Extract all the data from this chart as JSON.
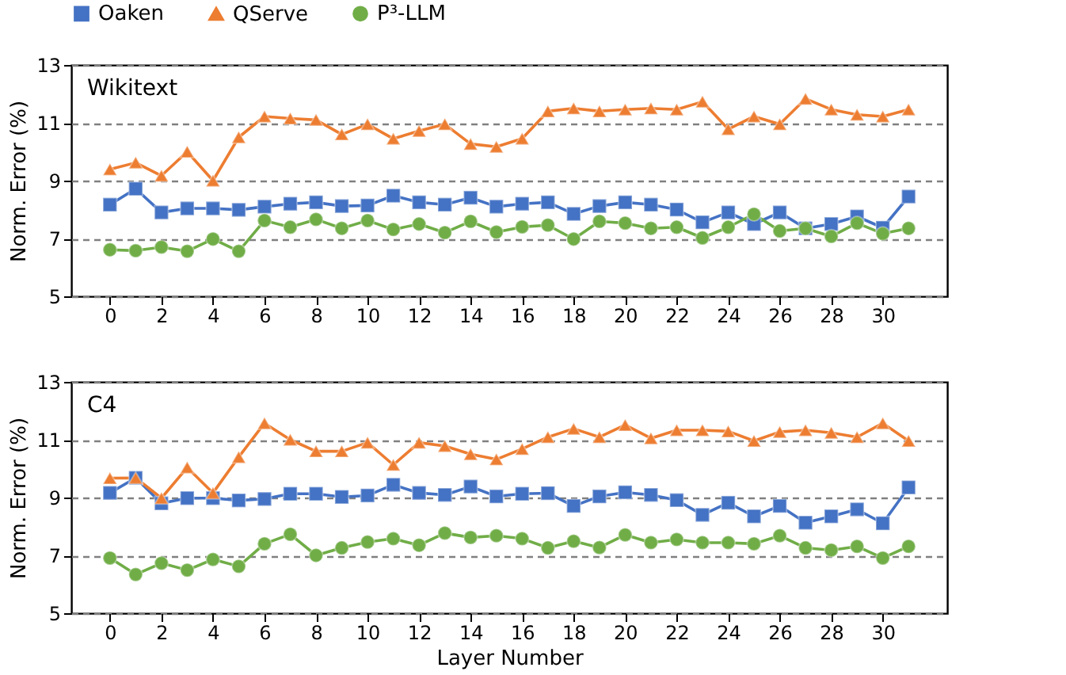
{
  "chart_data": [
    {
      "type": "line",
      "title": "Wikitext",
      "ylabel": "Norm. Error (%)",
      "legend": "top",
      "grid": "y",
      "line_style": "solid",
      "x": [
        0,
        1,
        2,
        3,
        4,
        5,
        6,
        7,
        8,
        9,
        10,
        11,
        12,
        13,
        14,
        15,
        16,
        17,
        18,
        19,
        20,
        21,
        22,
        23,
        24,
        25,
        26,
        27,
        28,
        29,
        30,
        31
      ],
      "xlim": [
        -1.5,
        32.5
      ],
      "xticks": [
        0,
        2,
        4,
        6,
        8,
        10,
        12,
        14,
        16,
        18,
        20,
        22,
        24,
        26,
        28,
        30
      ],
      "ylim": [
        5,
        13
      ],
      "yticks": [
        5,
        7,
        9,
        11,
        13
      ],
      "series": [
        {
          "name": "Oaken",
          "color": "#4472c4",
          "marker": "square",
          "values": [
            8.17,
            8.72,
            7.9,
            8.04,
            8.04,
            7.99,
            8.1,
            8.2,
            8.25,
            8.12,
            8.14,
            8.48,
            8.25,
            8.17,
            8.41,
            8.1,
            8.2,
            8.25,
            7.85,
            8.12,
            8.25,
            8.17,
            8.0,
            7.56,
            7.9,
            7.5,
            7.9,
            7.35,
            7.5,
            7.76,
            7.37,
            8.45
          ]
        },
        {
          "name": "QServe",
          "color": "#ed7d31",
          "marker": "triangle",
          "values": [
            9.39,
            9.62,
            9.17,
            10.0,
            9.0,
            10.5,
            11.22,
            11.15,
            11.1,
            10.6,
            10.95,
            10.45,
            10.72,
            10.95,
            10.27,
            10.17,
            10.45,
            11.4,
            11.5,
            11.4,
            11.46,
            11.5,
            11.46,
            11.73,
            10.78,
            11.22,
            10.95,
            11.83,
            11.46,
            11.28,
            11.22,
            11.46
          ]
        },
        {
          "name": "P³-LLM",
          "color": "#70ad47",
          "marker": "circle",
          "values": [
            6.61,
            6.58,
            6.7,
            6.56,
            6.98,
            6.56,
            7.62,
            7.39,
            7.66,
            7.35,
            7.62,
            7.31,
            7.5,
            7.2,
            7.59,
            7.22,
            7.4,
            7.46,
            6.98,
            7.59,
            7.53,
            7.35,
            7.39,
            7.02,
            7.39,
            7.84,
            7.26,
            7.35,
            7.07,
            7.53,
            7.17,
            7.35
          ]
        }
      ]
    },
    {
      "type": "line",
      "title": "C4",
      "xlabel": "Layer Number",
      "ylabel": "Norm. Error (%)",
      "grid": "y",
      "line_style": "solid",
      "x": [
        0,
        1,
        2,
        3,
        4,
        5,
        6,
        7,
        8,
        9,
        10,
        11,
        12,
        13,
        14,
        15,
        16,
        17,
        18,
        19,
        20,
        21,
        22,
        23,
        24,
        25,
        26,
        27,
        28,
        29,
        30,
        31
      ],
      "xlim": [
        -1.5,
        32.5
      ],
      "xticks": [
        0,
        2,
        4,
        6,
        8,
        10,
        12,
        14,
        16,
        18,
        20,
        22,
        24,
        26,
        28,
        30
      ],
      "ylim": [
        5,
        13
      ],
      "yticks": [
        5,
        7,
        9,
        11,
        13
      ],
      "series": [
        {
          "name": "Oaken",
          "color": "#4472c4",
          "marker": "square",
          "values": [
            9.16,
            9.68,
            8.8,
            8.98,
            8.98,
            8.9,
            8.95,
            9.13,
            9.13,
            9.02,
            9.07,
            9.44,
            9.16,
            9.09,
            9.38,
            9.04,
            9.13,
            9.15,
            8.71,
            9.04,
            9.18,
            9.09,
            8.91,
            8.4,
            8.82,
            8.35,
            8.71,
            8.13,
            8.35,
            8.59,
            8.11,
            9.35
          ]
        },
        {
          "name": "QServe",
          "color": "#ed7d31",
          "marker": "triangle",
          "values": [
            9.67,
            9.68,
            8.98,
            10.04,
            9.16,
            10.4,
            11.57,
            11.0,
            10.6,
            10.6,
            10.9,
            10.13,
            10.9,
            10.78,
            10.5,
            10.32,
            10.68,
            11.09,
            11.38,
            11.09,
            11.51,
            11.05,
            11.33,
            11.33,
            11.29,
            10.96,
            11.27,
            11.33,
            11.24,
            11.09,
            11.57,
            10.96
          ]
        },
        {
          "name": "P³-LLM",
          "color": "#70ad47",
          "marker": "circle",
          "values": [
            6.91,
            6.34,
            6.73,
            6.49,
            6.86,
            6.62,
            7.4,
            7.73,
            7.0,
            7.26,
            7.46,
            7.58,
            7.35,
            7.77,
            7.62,
            7.68,
            7.58,
            7.26,
            7.49,
            7.27,
            7.71,
            7.44,
            7.55,
            7.44,
            7.44,
            7.4,
            7.68,
            7.26,
            7.18,
            7.31,
            6.91,
            7.31
          ]
        }
      ]
    }
  ]
}
